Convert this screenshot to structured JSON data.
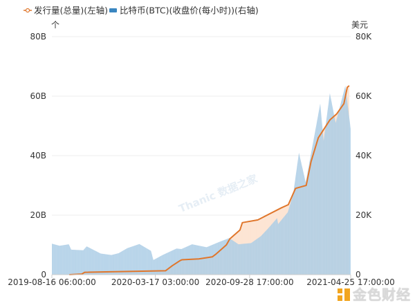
{
  "chart_data": {
    "type": "area+line",
    "legend": {
      "placement": "top-left",
      "items": [
        {
          "label": "发行量(总量)(左轴)",
          "color": "#e0762b",
          "marker": "line-circle"
        },
        {
          "label": "比特币(BTC)(收盘价(每小时))(右轴)",
          "color": "#3a86c0",
          "marker": "rect"
        }
      ]
    },
    "left_axis": {
      "unit": "个",
      "ticks": [
        "0",
        "20B",
        "40B",
        "60B",
        "80B"
      ],
      "range": [
        0,
        80
      ]
    },
    "right_axis": {
      "unit": "美元",
      "ticks": [
        "0",
        "20K",
        "40K",
        "60K",
        "80K"
      ],
      "range": [
        0,
        80
      ]
    },
    "x_axis": {
      "type": "time",
      "range": [
        "2019-08-16",
        "2021-04-25"
      ],
      "ticks": [
        {
          "date": "2019-08-16",
          "label": "2019-08-16 06:00:00"
        },
        {
          "date": "2020-03-17",
          "label": "2020-03-17 03:00:00"
        },
        {
          "date": "2020-09-28",
          "label": "2020-09-28 17:00:00"
        },
        {
          "date": "2021-04-25",
          "label": "2021-04-25 17:00:00"
        }
      ]
    },
    "grid": "horizontal",
    "series": [
      {
        "name": "发行量(总量)(左轴)",
        "axis": "left",
        "unit": "B",
        "type": "line",
        "color": "#e0762b",
        "fill": "#fde4d2",
        "points": [
          [
            "2019-09-21",
            0
          ],
          [
            "2019-10-17",
            0.2
          ],
          [
            "2019-10-23",
            0.8
          ],
          [
            "2020-04-07",
            1.3
          ],
          [
            "2020-04-21",
            3
          ],
          [
            "2020-05-07",
            4.7
          ],
          [
            "2020-05-11",
            5
          ],
          [
            "2020-06-15",
            5.3
          ],
          [
            "2020-07-13",
            6
          ],
          [
            "2020-07-21",
            7
          ],
          [
            "2020-08-11",
            10
          ],
          [
            "2020-08-18",
            12
          ],
          [
            "2020-09-08",
            15
          ],
          [
            "2020-09-13",
            17.5
          ],
          [
            "2020-10-15",
            18.4
          ],
          [
            "2020-12-03",
            22.5
          ],
          [
            "2020-12-17",
            23.5
          ],
          [
            "2021-01-01",
            29
          ],
          [
            "2021-01-23",
            30
          ],
          [
            "2021-02-02",
            38
          ],
          [
            "2021-02-17",
            46
          ],
          [
            "2021-03-13",
            52
          ],
          [
            "2021-03-27",
            54
          ],
          [
            "2021-04-11",
            57.5
          ],
          [
            "2021-04-18",
            63
          ],
          [
            "2021-04-22",
            63.5
          ]
        ]
      },
      {
        "name": "比特币(BTC)(收盘价(每小时))(右轴)",
        "axis": "right",
        "unit": "K",
        "type": "area",
        "color": "#a9cbe5",
        "points": [
          [
            "2019-08-16",
            10.4
          ],
          [
            "2019-09-01",
            9.7
          ],
          [
            "2019-09-20",
            10.2
          ],
          [
            "2019-09-25",
            8.4
          ],
          [
            "2019-10-20",
            8.2
          ],
          [
            "2019-10-27",
            9.5
          ],
          [
            "2019-11-25",
            7.1
          ],
          [
            "2019-12-17",
            6.6
          ],
          [
            "2020-01-01",
            7.2
          ],
          [
            "2020-01-19",
            8.9
          ],
          [
            "2020-02-13",
            10.3
          ],
          [
            "2020-03-08",
            8.0
          ],
          [
            "2020-03-13",
            4.9
          ],
          [
            "2020-04-01",
            6.6
          ],
          [
            "2020-04-30",
            8.8
          ],
          [
            "2020-05-10",
            8.6
          ],
          [
            "2020-06-01",
            10.2
          ],
          [
            "2020-07-01",
            9.2
          ],
          [
            "2020-07-27",
            11.0
          ],
          [
            "2020-08-17",
            12.3
          ],
          [
            "2020-09-05",
            10.2
          ],
          [
            "2020-10-01",
            10.6
          ],
          [
            "2020-10-21",
            12.9
          ],
          [
            "2020-11-05",
            15.5
          ],
          [
            "2020-11-24",
            19.0
          ],
          [
            "2020-11-26",
            17.0
          ],
          [
            "2020-12-16",
            21.0
          ],
          [
            "2020-12-27",
            27.0
          ],
          [
            "2021-01-08",
            41.0
          ],
          [
            "2021-01-22",
            31.0
          ],
          [
            "2021-02-08",
            46.0
          ],
          [
            "2021-02-21",
            57.5
          ],
          [
            "2021-02-28",
            45.0
          ],
          [
            "2021-03-13",
            61.0
          ],
          [
            "2021-03-25",
            51.0
          ],
          [
            "2021-04-14",
            63.5
          ],
          [
            "2021-04-25",
            49.0
          ]
        ]
      }
    ]
  },
  "watermark": "Thanic 数据之家",
  "logo": {
    "text": "金色财经",
    "color": "#f2a51f"
  }
}
